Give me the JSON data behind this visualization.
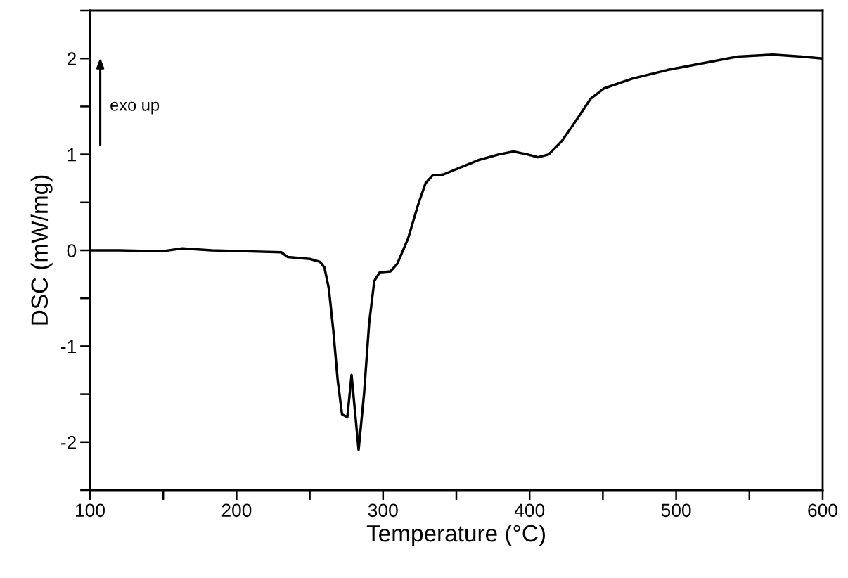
{
  "chart_data": {
    "type": "line",
    "xlabel": "Temperature (°C)",
    "ylabel": "DSC (mW/mg)",
    "annotations": [
      "exo up"
    ],
    "xlim": [
      100,
      600
    ],
    "ylim": [
      -2.5,
      2.5
    ],
    "xticks": [
      100,
      {
        "value": 150,
        "label": null
      },
      200,
      {
        "value": 250,
        "label": null
      },
      300,
      {
        "value": 350,
        "label": null
      },
      400,
      {
        "value": 450,
        "label": null
      },
      500,
      {
        "value": 550,
        "label": null
      },
      600
    ],
    "yticks": [
      {
        "value": -2.5,
        "label": null
      },
      -2,
      {
        "value": -1.5,
        "label": null
      },
      -1,
      {
        "value": -0.5,
        "label": null
      },
      0,
      {
        "value": 0.5,
        "label": null
      },
      1,
      {
        "value": 1.5,
        "label": null
      },
      2,
      {
        "value": 2.5,
        "label": null
      }
    ],
    "grid": false,
    "legend": false,
    "marker": "none",
    "line_style": "solid",
    "series": [
      {
        "color": "#000000",
        "x": [
          100,
          120,
          149,
          163,
          183,
          206.5,
          230.5,
          235,
          250,
          257,
          260,
          263,
          266,
          269,
          272,
          275.6,
          278.5,
          283.3,
          287,
          290.5,
          294,
          297.7,
          305,
          309.7,
          317,
          324,
          329,
          333.7,
          341,
          350.5,
          365,
          379,
          389,
          398.5,
          405.7,
          413,
          422,
          432,
          441.6,
          451,
          470,
          494,
          518,
          542,
          566,
          585.6,
          600
        ],
        "values": [
          0,
          0,
          -0.01,
          0.02,
          0,
          -0.01,
          -0.02,
          -0.07,
          -0.09,
          -0.12,
          -0.18,
          -0.4,
          -0.83,
          -1.35,
          -1.71,
          -1.74,
          -1.3,
          -2.08,
          -1.5,
          -0.76,
          -0.32,
          -0.23,
          -0.22,
          -0.14,
          0.12,
          0.48,
          0.7,
          0.78,
          0.79,
          0.85,
          0.94,
          1.0,
          1.03,
          1.0,
          0.97,
          1.0,
          1.14,
          1.36,
          1.58,
          1.69,
          1.79,
          1.88,
          1.95,
          2.02,
          2.04,
          2.02,
          2.0
        ]
      }
    ]
  }
}
